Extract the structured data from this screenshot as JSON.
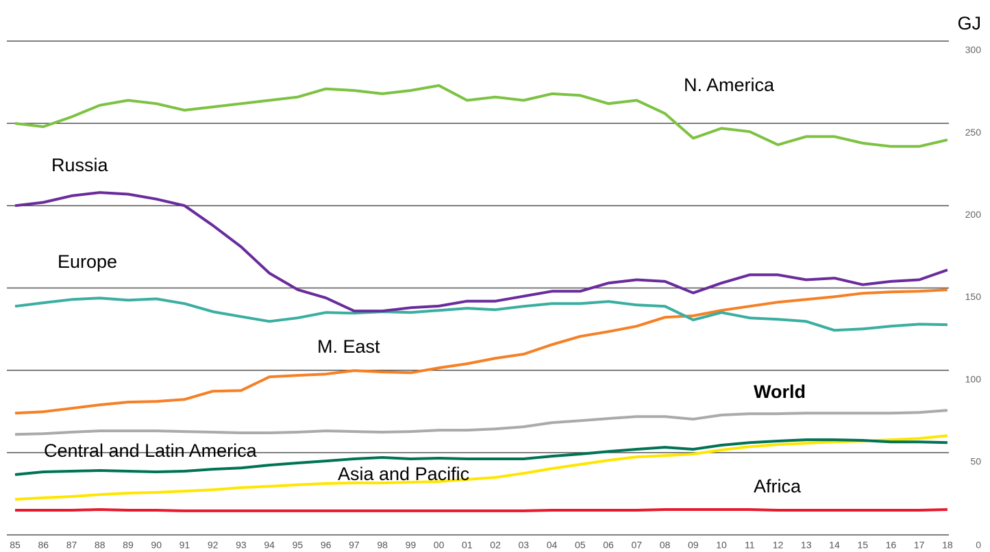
{
  "chart_data": {
    "type": "line",
    "y_label": "GJ",
    "categories": [
      "85",
      "86",
      "87",
      "88",
      "89",
      "90",
      "91",
      "92",
      "93",
      "94",
      "95",
      "96",
      "97",
      "98",
      "99",
      "00",
      "01",
      "02",
      "03",
      "04",
      "05",
      "06",
      "07",
      "08",
      "09",
      "10",
      "11",
      "12",
      "13",
      "14",
      "15",
      "16",
      "17",
      "18"
    ],
    "ylim": [
      0,
      300
    ],
    "yticks": [
      0,
      50,
      100,
      150,
      200,
      250,
      300
    ],
    "grid": true,
    "series": [
      {
        "name": "Africa",
        "color": "#e8192c",
        "values": [
          15,
          15,
          15,
          15.4,
          15,
          15,
          14.6,
          14.6,
          14.6,
          14.6,
          14.6,
          14.6,
          14.6,
          14.6,
          14.6,
          14.6,
          14.6,
          14.6,
          14.6,
          15,
          15,
          15,
          15,
          15.4,
          15.4,
          15.4,
          15.4,
          15,
          15,
          15,
          15,
          15,
          15,
          15.4
        ]
      },
      {
        "name": "Asia and Pacific",
        "color": "#ffe600",
        "values": [
          21.6,
          22.5,
          23.3,
          24.5,
          25.4,
          25.8,
          26.6,
          27.4,
          28.7,
          29.5,
          30.4,
          31.2,
          31.6,
          31.6,
          32,
          32.4,
          33.7,
          34.9,
          37.4,
          40.3,
          42.8,
          45.3,
          47.4,
          48.2,
          49.1,
          51.6,
          53.6,
          54.9,
          55.7,
          56.5,
          57,
          57.8,
          58.6,
          60.3
        ]
      },
      {
        "name": "Central and Latin America",
        "color": "#007355",
        "values": [
          36.6,
          38.3,
          38.7,
          39.1,
          38.7,
          38.3,
          38.7,
          39.9,
          40.7,
          42.4,
          43.7,
          44.9,
          46.2,
          47,
          46.2,
          46.6,
          46.2,
          46.2,
          46.2,
          47.8,
          49.1,
          50.7,
          52,
          53.2,
          52,
          54.5,
          56.1,
          57,
          57.8,
          57.8,
          57.4,
          56.5,
          56.5,
          56.1
        ]
      },
      {
        "name": "World",
        "color": "#aaaaaa",
        "bold": true,
        "values": [
          61.1,
          61.5,
          62.4,
          63.2,
          63.2,
          63.2,
          62.8,
          62.4,
          62,
          62,
          62.4,
          63.2,
          62.8,
          62.4,
          62.8,
          63.6,
          63.6,
          64.4,
          65.7,
          68.2,
          69.4,
          70.7,
          71.9,
          71.9,
          70.3,
          72.8,
          73.6,
          73.6,
          74,
          74,
          74,
          74,
          74.4,
          75.7
        ]
      },
      {
        "name": "M. East",
        "color": "#f58025",
        "values": [
          74,
          74.8,
          76.9,
          79,
          80.7,
          81.1,
          82.3,
          87.3,
          87.7,
          96,
          96.9,
          97.7,
          99.8,
          99,
          98.5,
          101.5,
          104,
          107.3,
          109.8,
          115.6,
          120.6,
          123.5,
          126.8,
          132.2,
          133.1,
          136.4,
          138.9,
          141.4,
          143,
          144.7,
          146.8,
          147.6,
          148,
          148.9
        ]
      },
      {
        "name": "Europe",
        "color": "#3aaea0",
        "values": [
          138.9,
          141,
          143,
          143.9,
          142.6,
          143.4,
          140.5,
          135.6,
          132.6,
          129.7,
          131.8,
          135.1,
          134.7,
          135.6,
          135.1,
          136.4,
          137.7,
          136.8,
          138.9,
          140.5,
          140.5,
          141.8,
          139.7,
          138.9,
          130.6,
          135.1,
          131.8,
          131,
          129.7,
          124.3,
          125.1,
          126.8,
          128,
          127.7
        ]
      },
      {
        "name": "Russia",
        "color": "#6a2c9c",
        "values": [
          200,
          202,
          206,
          208,
          207,
          204,
          200,
          188,
          175,
          159,
          149,
          144,
          136,
          136,
          138,
          139,
          142,
          142,
          145,
          148,
          148,
          153,
          155,
          154,
          147,
          153,
          158,
          158,
          155,
          156,
          152,
          154,
          155,
          161
        ]
      },
      {
        "name": "N. America",
        "color": "#7dc242",
        "values": [
          250,
          248,
          254,
          261,
          264,
          262,
          258,
          260,
          262,
          264,
          266,
          271,
          270,
          268,
          270,
          273,
          264,
          266,
          264,
          268,
          267,
          262,
          264,
          256,
          241,
          247,
          245,
          237,
          242,
          242,
          238,
          236,
          236,
          240
        ]
      }
    ]
  }
}
